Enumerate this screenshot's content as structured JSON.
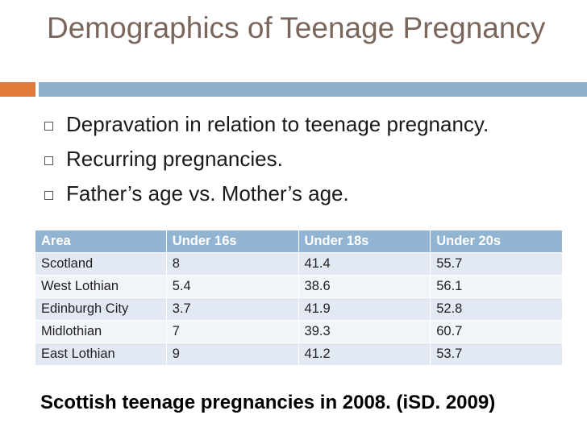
{
  "title": "Demographics of Teenage Pregnancy",
  "accent_colors": {
    "orange": "#e07b3c",
    "blue": "#8cb0cc",
    "title_text": "#7a665b",
    "table_header": "#92b4d3"
  },
  "bullet_icon": "checkbox-square-icon",
  "bullets": [
    "Depravation in relation to teenage pregnancy.",
    "Recurring pregnancies.",
    "Father’s age vs. Mother’s age."
  ],
  "table": {
    "headers": [
      "Area",
      "Under 16s",
      "Under 18s",
      "Under 20s"
    ],
    "rows": [
      [
        "Scotland",
        "8",
        "41.4",
        "55.7"
      ],
      [
        "West Lothian",
        "5.4",
        "38.6",
        "56.1"
      ],
      [
        "Edinburgh City",
        "3.7",
        "41.9",
        "52.8"
      ],
      [
        "Midlothian",
        "7",
        "39.3",
        "60.7"
      ],
      [
        "East Lothian",
        "9",
        "41.2",
        "53.7"
      ]
    ]
  },
  "caption": "Scottish teenage pregnancies in 2008. (iSD. 2009)"
}
